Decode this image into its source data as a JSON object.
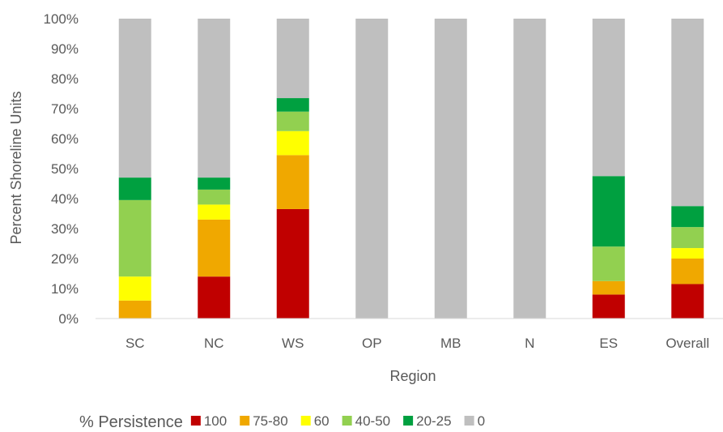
{
  "chart_data": {
    "type": "bar",
    "stacked": true,
    "percent_stacked": true,
    "title": "",
    "xlabel": "Region",
    "ylabel": "Percent Shoreline Units",
    "ylim": [
      0,
      100
    ],
    "y_ticks": [
      "0%",
      "10%",
      "20%",
      "30%",
      "40%",
      "50%",
      "60%",
      "70%",
      "80%",
      "90%",
      "100%"
    ],
    "categories": [
      "SC",
      "NC",
      "WS",
      "OP",
      "MB",
      "N",
      "ES",
      "Overall"
    ],
    "legend_title": "% Persistence",
    "legend_position": "bottom",
    "grid": false,
    "series": [
      {
        "name": "100",
        "color": "#c00000",
        "values": [
          0,
          14,
          36.5,
          0,
          0,
          0,
          8,
          11.5
        ]
      },
      {
        "name": "75-80",
        "color": "#f0a800",
        "values": [
          6,
          19,
          18,
          0,
          0,
          0,
          4.5,
          8.5
        ]
      },
      {
        "name": "60",
        "color": "#ffff00",
        "values": [
          8,
          5,
          8,
          0,
          0,
          0,
          0,
          3.5
        ]
      },
      {
        "name": "40-50",
        "color": "#92d050",
        "values": [
          25.5,
          5,
          6.5,
          0,
          0,
          0,
          11.5,
          7
        ]
      },
      {
        "name": "20-25",
        "color": "#00a040",
        "values": [
          7.5,
          4,
          4.5,
          0,
          0,
          0,
          23.5,
          7
        ]
      },
      {
        "name": "0",
        "color": "#bfbfbf",
        "values": [
          53,
          53,
          26.5,
          100,
          100,
          100,
          52.5,
          62.5
        ]
      }
    ]
  }
}
